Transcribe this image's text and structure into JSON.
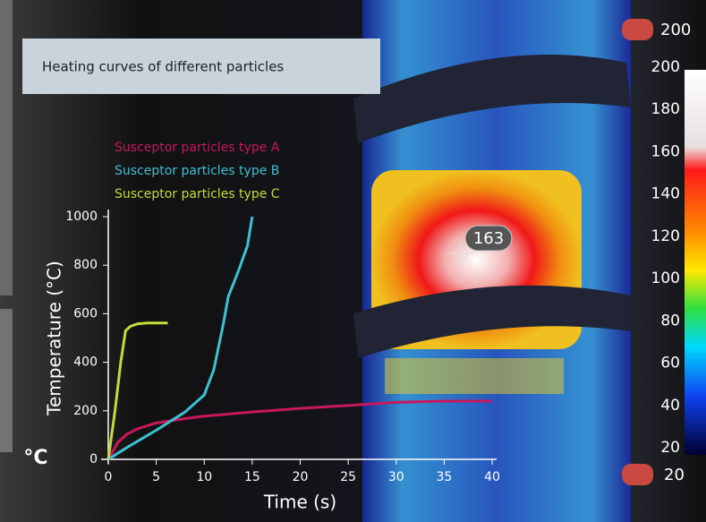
{
  "chart_data": {
    "type": "line",
    "title": "Heating curves of different particles",
    "x_label": "Time (s)",
    "y_label": "Temperature (°C)",
    "xlim": [
      0,
      40
    ],
    "ylim": [
      0,
      1000
    ],
    "xticks": [
      0,
      5,
      10,
      15,
      20,
      25,
      30,
      35,
      40
    ],
    "yticks": [
      0,
      200,
      400,
      600,
      800,
      1000
    ],
    "series": [
      {
        "name": "Susceptor particles type A",
        "color": "#c8185c",
        "x": [
          0,
          1,
          2,
          3,
          5,
          8,
          10,
          15,
          20,
          25,
          30,
          35,
          40
        ],
        "values": [
          0,
          70,
          105,
          125,
          150,
          168,
          178,
          195,
          210,
          222,
          235,
          240,
          240
        ]
      },
      {
        "name": "Susceptor particles type B",
        "color": "#3fc0d2",
        "x": [
          0,
          2,
          5,
          8,
          10,
          11,
          12,
          12.5,
          13.5,
          14.5,
          15
        ],
        "values": [
          0,
          50,
          120,
          195,
          265,
          370,
          560,
          670,
          770,
          880,
          1000
        ]
      },
      {
        "name": "Susceptor particles type C",
        "color": "#c6da3a",
        "x": [
          0,
          0.7,
          1.3,
          1.8,
          2.3,
          3,
          4,
          6.2
        ],
        "values": [
          0,
          200,
          400,
          530,
          548,
          558,
          562,
          562
        ]
      }
    ]
  },
  "thermal": {
    "spot_temperature": 163,
    "range_max": "200",
    "range_min": "20",
    "unit": "°C",
    "scale_ticks": [
      200,
      180,
      160,
      140,
      120,
      100,
      80,
      60,
      40,
      20
    ]
  }
}
